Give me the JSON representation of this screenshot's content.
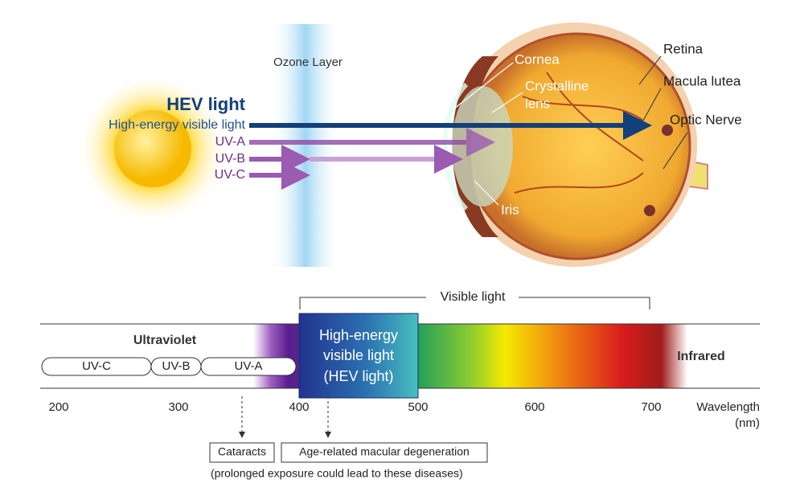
{
  "illustration": {
    "hev_title": "HEV light",
    "hev_subtitle": "High-energy visible light",
    "rays": [
      "UV-A",
      "UV-B",
      "UV-C"
    ],
    "ozone_layer": "Ozone Layer",
    "eye_labels": {
      "cornea": "Cornea",
      "lens": [
        "Crystalline",
        "lens"
      ],
      "iris": "Iris",
      "retina": "Retina",
      "macula": "Macula lutea",
      "optic_nerve": "Optic Nerve"
    }
  },
  "spectrum": {
    "visible_light": "Visible light",
    "ultraviolet": "Ultraviolet",
    "uv_bands": [
      "UV-C",
      "UV-B",
      "UV-A"
    ],
    "hev_box": [
      "High-energy",
      "visible light",
      "(HEV light)"
    ],
    "infrared": "Infrared",
    "wavelengths": [
      200,
      300,
      400,
      500,
      600,
      700
    ],
    "axis_label": [
      "Wavelength",
      "(nm)"
    ]
  },
  "diseases": {
    "items": [
      "Cataracts",
      "Age-related macular degeneration"
    ],
    "note": "(prolonged exposure could lead to these diseases)"
  }
}
